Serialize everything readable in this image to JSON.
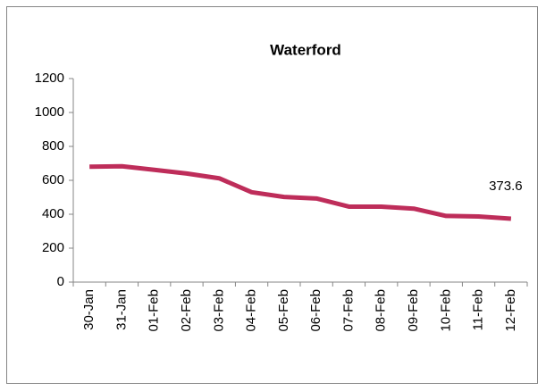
{
  "chart_data": {
    "type": "line",
    "title": "Waterford",
    "categories": [
      "30-Jan",
      "31-Jan",
      "01-Feb",
      "02-Feb",
      "03-Feb",
      "04-Feb",
      "05-Feb",
      "06-Feb",
      "07-Feb",
      "08-Feb",
      "09-Feb",
      "10-Feb",
      "11-Feb",
      "12-Feb"
    ],
    "values": [
      680,
      683,
      662,
      640,
      612,
      530,
      502,
      493,
      445,
      445,
      433,
      390,
      387,
      373.6
    ],
    "color": "#be2d5a",
    "ylim": [
      0,
      1200
    ],
    "yticks": [
      0,
      200,
      400,
      600,
      800,
      1000,
      1200
    ],
    "grid": false
  }
}
